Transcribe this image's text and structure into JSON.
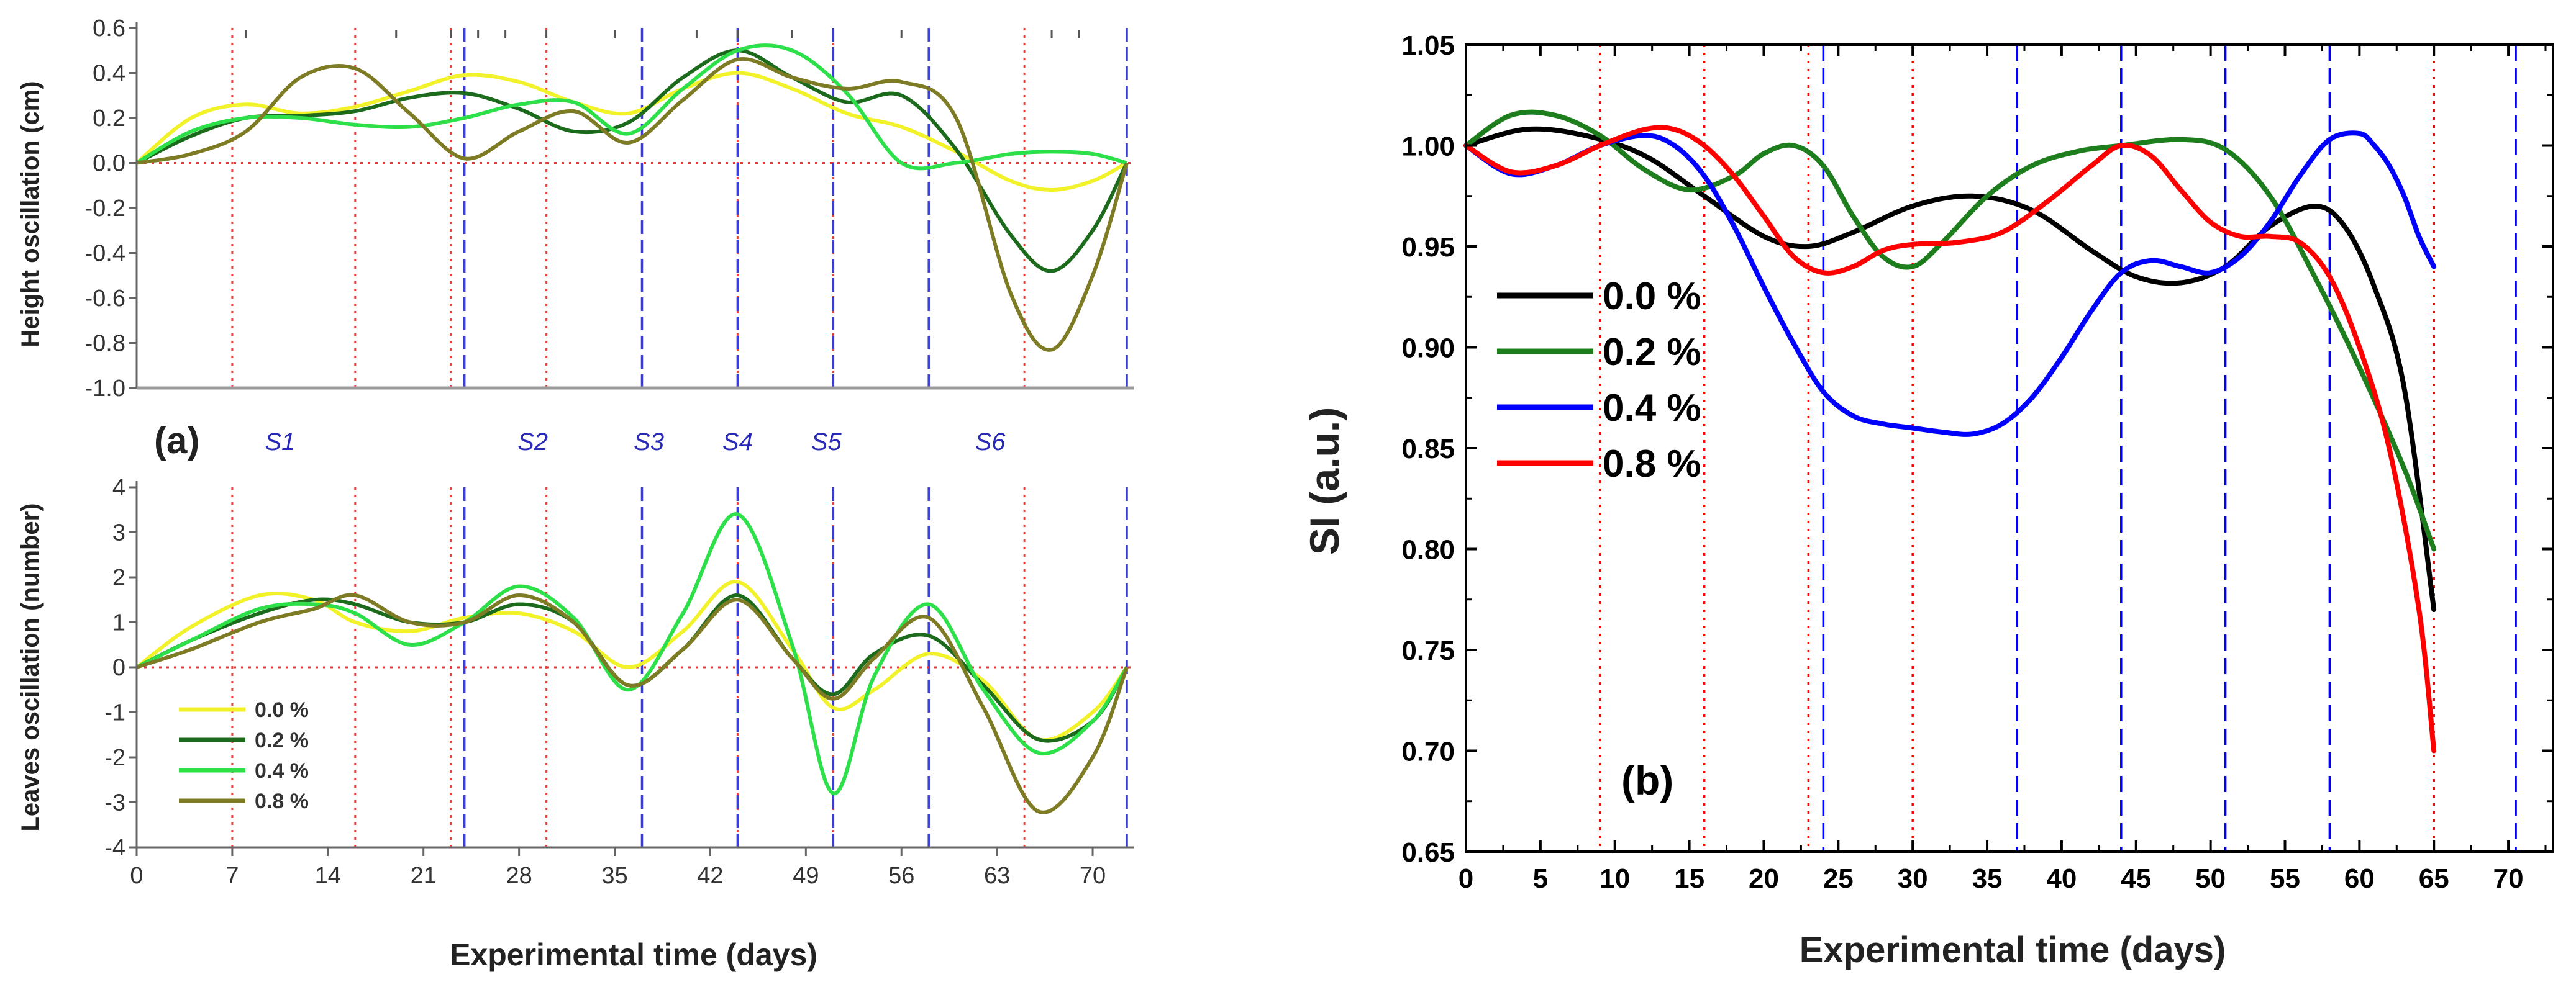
{
  "chart_data": [
    {
      "type": "line",
      "panel": "a",
      "panel_label": "(a)",
      "xlabel": "Experimental time (days)",
      "xticks": [
        "0",
        "7",
        "14",
        "21",
        "28",
        "35",
        "42",
        "49",
        "56",
        "63",
        "70"
      ],
      "xlim": [
        0,
        73
      ],
      "stage_labels": [
        "S1",
        "S2",
        "S3",
        "S4",
        "S5",
        "S6"
      ],
      "stage_label_x": [
        10.5,
        29,
        37.5,
        44,
        50.5,
        62.5
      ],
      "red_dotted_x": [
        7,
        16,
        23,
        30,
        44,
        51,
        65
      ],
      "blue_dashed_x": [
        24,
        37,
        44,
        51,
        58,
        72.5
      ],
      "colors": {
        "0.0 %": "#f2f22a",
        "0.2 %": "#1c6b1c",
        "0.4 %": "#2de04a",
        "0.8 %": "#7d7b24"
      },
      "legend": [
        "0.0 %",
        "0.2 %",
        "0.4 %",
        "0.8 %"
      ],
      "subplots": [
        {
          "name": "height",
          "ylabel": "Height oscillation (cm)",
          "ylim": [
            -1.0,
            0.6
          ],
          "yticks": [
            "0.6",
            "0.4",
            "0.2",
            "0.0",
            "-0.2",
            "-0.4",
            "-0.6",
            "-0.8",
            "-1.0"
          ],
          "x": [
            0,
            4,
            8,
            12,
            16,
            20,
            24,
            28,
            32,
            36,
            40,
            44,
            48,
            52,
            56,
            60,
            64,
            67,
            70,
            72.5
          ],
          "series": [
            {
              "name": "0.0 %",
              "values": [
                0.0,
                0.2,
                0.26,
                0.22,
                0.25,
                0.32,
                0.39,
                0.36,
                0.27,
                0.22,
                0.33,
                0.4,
                0.33,
                0.22,
                0.16,
                0.05,
                -0.08,
                -0.12,
                -0.08,
                0.0
              ]
            },
            {
              "name": "0.2 %",
              "values": [
                0.0,
                0.12,
                0.2,
                0.21,
                0.23,
                0.29,
                0.31,
                0.24,
                0.14,
                0.18,
                0.38,
                0.5,
                0.38,
                0.27,
                0.3,
                0.06,
                -0.32,
                -0.48,
                -0.3,
                0.0
              ]
            },
            {
              "name": "0.4 %",
              "values": [
                0.0,
                0.14,
                0.2,
                0.2,
                0.17,
                0.16,
                0.2,
                0.26,
                0.27,
                0.13,
                0.33,
                0.5,
                0.5,
                0.31,
                0.0,
                0.0,
                0.04,
                0.05,
                0.04,
                0.0
              ]
            },
            {
              "name": "0.8 %",
              "values": [
                0.0,
                0.04,
                0.14,
                0.38,
                0.42,
                0.22,
                0.02,
                0.14,
                0.23,
                0.09,
                0.28,
                0.46,
                0.38,
                0.33,
                0.36,
                0.2,
                -0.58,
                -0.83,
                -0.5,
                0.0
              ]
            }
          ]
        },
        {
          "name": "leaves",
          "ylabel": "Leaves oscillation (number)",
          "ylim": [
            -4,
            4
          ],
          "yticks": [
            "4",
            "3",
            "2",
            "1",
            "0",
            "-1",
            "-2",
            "-3",
            "-4"
          ],
          "x": [
            0,
            4,
            9,
            13,
            16,
            20,
            24,
            28,
            32,
            36,
            40,
            44,
            48,
            51,
            54,
            58,
            62,
            66,
            70,
            72.5
          ],
          "series": [
            {
              "name": "0.0 %",
              "values": [
                0.0,
                0.9,
                1.6,
                1.5,
                1.0,
                0.8,
                1.1,
                1.2,
                0.8,
                0.0,
                0.8,
                1.9,
                0.4,
                -0.9,
                -0.5,
                0.3,
                -0.3,
                -1.6,
                -1.0,
                0.0
              ]
            },
            {
              "name": "0.2 %",
              "values": [
                0.0,
                0.6,
                1.2,
                1.5,
                1.4,
                1.0,
                1.0,
                1.4,
                1.0,
                -0.4,
                0.4,
                1.6,
                0.2,
                -0.6,
                0.3,
                0.7,
                -0.4,
                -1.6,
                -1.2,
                0.0
              ]
            },
            {
              "name": "0.4 %",
              "values": [
                0.0,
                0.6,
                1.3,
                1.4,
                1.2,
                0.5,
                1.0,
                1.8,
                1.1,
                -0.5,
                1.2,
                3.4,
                0.5,
                -2.8,
                -0.2,
                1.4,
                -0.5,
                -1.9,
                -1.2,
                0.0
              ]
            },
            {
              "name": "0.8 %",
              "values": [
                0.0,
                0.4,
                1.0,
                1.3,
                1.6,
                1.0,
                1.0,
                1.6,
                1.0,
                -0.4,
                0.4,
                1.5,
                0.2,
                -0.7,
                0.2,
                1.1,
                -0.9,
                -3.2,
                -2.0,
                0.0
              ]
            }
          ]
        }
      ]
    },
    {
      "type": "line",
      "panel": "b",
      "panel_label": "(b)",
      "xlabel": "Experimental time (days)",
      "ylabel": "SI (a.u.)",
      "xlim": [
        0,
        73
      ],
      "ylim": [
        0.65,
        1.05
      ],
      "xticks": [
        "0",
        "5",
        "10",
        "15",
        "20",
        "25",
        "30",
        "35",
        "40",
        "45",
        "50",
        "55",
        "60",
        "65",
        "70"
      ],
      "yticks": [
        "1.05",
        "1.00",
        "0.95",
        "0.90",
        "0.85",
        "0.80",
        "0.75",
        "0.70",
        "0.65"
      ],
      "red_dotted_x": [
        9,
        16,
        23,
        30,
        65
      ],
      "blue_dashed_x": [
        24,
        37,
        44,
        51,
        58,
        70.5
      ],
      "legend": [
        "0.0 %",
        "0.2 %",
        "0.4 %",
        "0.8 %"
      ],
      "colors": {
        "0.0 %": "#000000",
        "0.2 %": "#1e7e1e",
        "0.4 %": "#0000ff",
        "0.8 %": "#ff0000"
      },
      "series": [
        {
          "name": "0.0 %",
          "x": [
            0,
            4,
            8,
            12,
            16,
            20,
            23,
            26,
            30,
            34,
            38,
            42,
            45,
            48,
            51,
            54,
            57,
            59,
            61,
            63,
            65
          ],
          "values": [
            1.0,
            1.008,
            1.005,
            0.995,
            0.975,
            0.955,
            0.95,
            0.957,
            0.97,
            0.975,
            0.968,
            0.948,
            0.935,
            0.932,
            0.94,
            0.96,
            0.97,
            0.96,
            0.93,
            0.88,
            0.77
          ]
        },
        {
          "name": "0.2 %",
          "x": [
            0,
            3,
            6,
            9,
            12,
            15,
            18,
            20,
            22,
            24,
            26,
            28,
            30,
            32,
            35,
            38,
            41,
            44,
            48,
            51,
            54,
            57,
            60,
            63,
            65
          ],
          "values": [
            1.0,
            1.015,
            1.015,
            1.005,
            0.988,
            0.978,
            0.985,
            0.996,
            1.0,
            0.99,
            0.965,
            0.945,
            0.94,
            0.952,
            0.975,
            0.99,
            0.997,
            1.0,
            1.003,
            0.998,
            0.975,
            0.935,
            0.89,
            0.84,
            0.8
          ]
        },
        {
          "name": "0.4 %",
          "x": [
            0,
            3,
            6,
            9,
            12,
            14,
            16,
            18,
            20,
            22,
            24,
            26,
            28,
            30,
            32,
            34,
            36,
            38,
            40,
            42,
            44,
            46,
            48,
            50,
            52,
            54,
            56,
            58,
            60,
            61,
            62,
            63,
            64,
            65
          ],
          "values": [
            1.0,
            0.986,
            0.99,
            1.0,
            1.005,
            1.0,
            0.985,
            0.96,
            0.93,
            0.902,
            0.878,
            0.866,
            0.862,
            0.86,
            0.858,
            0.857,
            0.862,
            0.875,
            0.895,
            0.918,
            0.937,
            0.943,
            0.94,
            0.937,
            0.945,
            0.962,
            0.985,
            1.003,
            1.006,
            1.0,
            0.99,
            0.975,
            0.955,
            0.94
          ]
        },
        {
          "name": "0.8 %",
          "x": [
            0,
            3,
            6,
            9,
            12,
            14,
            16,
            18,
            20,
            22,
            24,
            26,
            28,
            30,
            33,
            36,
            39,
            42,
            44,
            46,
            48,
            50,
            52,
            54,
            56,
            58,
            60,
            62,
            64,
            65
          ],
          "values": [
            1.0,
            0.987,
            0.99,
            1.0,
            1.008,
            1.008,
            1.0,
            0.985,
            0.965,
            0.945,
            0.937,
            0.94,
            0.948,
            0.951,
            0.952,
            0.957,
            0.972,
            0.99,
            1.0,
            0.995,
            0.978,
            0.962,
            0.955,
            0.955,
            0.952,
            0.935,
            0.9,
            0.85,
            0.77,
            0.7
          ]
        }
      ]
    }
  ]
}
